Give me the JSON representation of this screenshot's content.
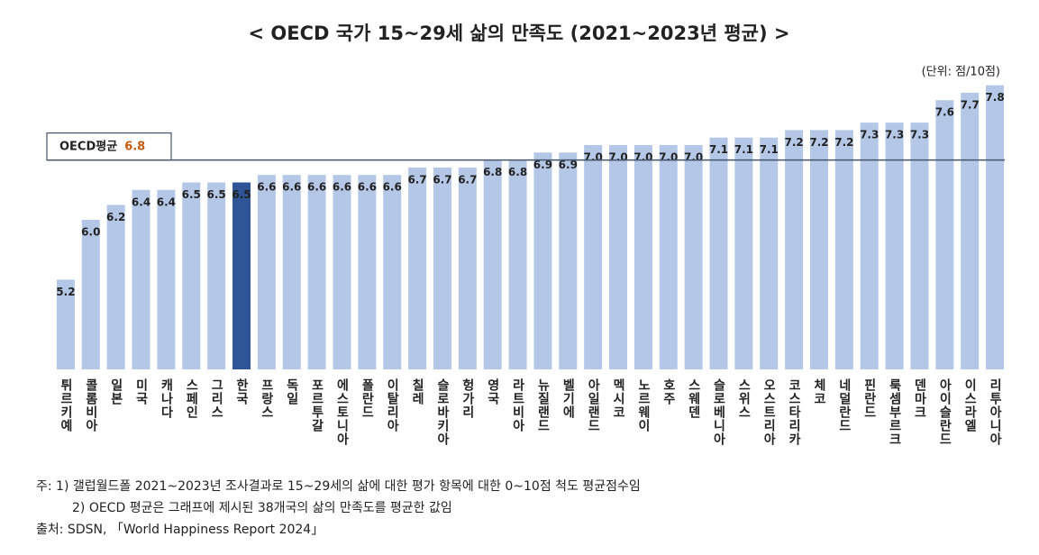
{
  "chart_data": {
    "type": "bar",
    "title": "< OECD 국가 15~29세 삶의 만족도 (2021~2023년 평균) >",
    "unit_label": "(단위: 점/10점)",
    "categories": [
      "튀르키예",
      "콜롬비아",
      "일본",
      "미국",
      "캐나다",
      "스페인",
      "그리스",
      "한국",
      "프랑스",
      "독일",
      "포르투갈",
      "에스토니아",
      "폴란드",
      "이탈리아",
      "칠레",
      "슬로바키아",
      "헝가리",
      "영국",
      "라트비아",
      "뉴질랜드",
      "벨기에",
      "아일랜드",
      "멕시코",
      "노르웨이",
      "호주",
      "스웨덴",
      "슬로베니아",
      "스위스",
      "오스트리아",
      "코스타리카",
      "체코",
      "네덜란드",
      "핀란드",
      "룩셈부르크",
      "덴마크",
      "아이슬란드",
      "이스라엘",
      "리투아니아"
    ],
    "values": [
      5.2,
      6.0,
      6.2,
      6.4,
      6.4,
      6.5,
      6.5,
      6.5,
      6.6,
      6.6,
      6.6,
      6.6,
      6.6,
      6.6,
      6.7,
      6.7,
      6.7,
      6.8,
      6.8,
      6.9,
      6.9,
      7.0,
      7.0,
      7.0,
      7.0,
      7.0,
      7.1,
      7.1,
      7.1,
      7.2,
      7.2,
      7.2,
      7.3,
      7.3,
      7.3,
      7.6,
      7.7,
      7.8
    ],
    "value_labels": [
      "5.2",
      "6.0",
      "6.2",
      "6.4",
      "6.4",
      "6.5",
      "6.5",
      "6.5",
      "6.6",
      "6.6",
      "6.6",
      "6.6",
      "6.6",
      "6.6",
      "6.7",
      "6.7",
      "6.7",
      "6.8",
      "6.8",
      "6.9",
      "6.9",
      "7.0",
      "7.0",
      "7.0",
      "7.0",
      "7.0",
      "7.1",
      "7.1",
      "7.1",
      "7.2",
      "7.2",
      "7.2",
      "7.3",
      "7.3",
      "7.3",
      "7.6",
      "7.7",
      "7.8"
    ],
    "color": "#b4c7e7",
    "highlight": {
      "index": 7,
      "color": "#2f5597"
    },
    "ylim": [
      4,
      8
    ],
    "reference_line": {
      "label": "OECD평균",
      "value": 6.8,
      "color": "#44546a",
      "value_color": "#c55a11"
    },
    "notes": [
      "주: 1) 갤럽월드폴 2021~2023년 조사결과로 15~29세의 삶에 대한 평가 항목에 대한 0~10점 척도 평균점수임",
      "2) OECD 평균은 그래프에 제시된 38개국의 삶의 만족도를 평균한 값임",
      "출처: SDSN, 「World Happiness Report 2024」"
    ]
  }
}
